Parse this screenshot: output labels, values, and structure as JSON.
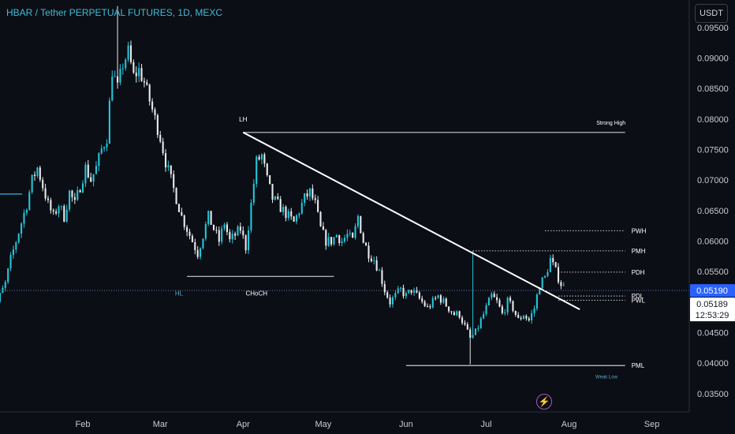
{
  "header": {
    "title": "HBAR / Tether PERPETUAL FUTURES, 1D, MEXC"
  },
  "toolbar": {
    "currency": "USDT",
    "alert_icon": "lightning-icon"
  },
  "price_tags": {
    "last_price": "0.05190",
    "mark_price": "0.05189",
    "countdown": "12:53:29"
  },
  "colors": {
    "background": "#0c0e15",
    "up": "#24c6d9",
    "down": "#e8eaed",
    "accent": "#2962ff",
    "text": "#c8cbd3"
  },
  "chart_data": {
    "type": "candlestick",
    "title": "HBAR / Tether PERPETUAL FUTURES, 1D, MEXC",
    "x_ticks": [
      "Feb",
      "Mar",
      "Apr",
      "May",
      "Jun",
      "Jul",
      "Aug",
      "Sep"
    ],
    "y_ticks": [
      "0.09500",
      "0.09000",
      "0.08500",
      "0.08000",
      "0.07500",
      "0.07000",
      "0.06500",
      "0.06000",
      "0.05500",
      "0.05000",
      "0.04500",
      "0.04000",
      "0.03500"
    ],
    "ylim": [
      0.032,
      0.0995
    ],
    "x_start": "2024-01-01",
    "x_end": "2024-09-15",
    "grid": false,
    "closes": [
      [
        -4,
        0.047
      ],
      [
        -2,
        0.049
      ],
      [
        0,
        0.051
      ],
      [
        2,
        0.053
      ],
      [
        4,
        0.057
      ],
      [
        6,
        0.06
      ],
      [
        8,
        0.063
      ],
      [
        10,
        0.066
      ],
      [
        12,
        0.07
      ],
      [
        14,
        0.072
      ],
      [
        16,
        0.069
      ],
      [
        18,
        0.066
      ],
      [
        20,
        0.064
      ],
      [
        22,
        0.066
      ],
      [
        24,
        0.064
      ],
      [
        26,
        0.068
      ],
      [
        28,
        0.066
      ],
      [
        30,
        0.069
      ],
      [
        32,
        0.072
      ],
      [
        34,
        0.07
      ],
      [
        36,
        0.072
      ],
      [
        38,
        0.075
      ],
      [
        40,
        0.077
      ],
      [
        42,
        0.088
      ],
      [
        44,
        0.085
      ],
      [
        46,
        0.089
      ],
      [
        48,
        0.091
      ],
      [
        50,
        0.087
      ],
      [
        52,
        0.088
      ],
      [
        54,
        0.086
      ],
      [
        56,
        0.083
      ],
      [
        58,
        0.08
      ],
      [
        60,
        0.077
      ],
      [
        62,
        0.073
      ],
      [
        64,
        0.07
      ],
      [
        66,
        0.067
      ],
      [
        68,
        0.064
      ],
      [
        70,
        0.062
      ],
      [
        72,
        0.06
      ],
      [
        74,
        0.058
      ],
      [
        76,
        0.061
      ],
      [
        78,
        0.064
      ],
      [
        80,
        0.062
      ],
      [
        82,
        0.06
      ],
      [
        84,
        0.063
      ],
      [
        86,
        0.06
      ],
      [
        88,
        0.061
      ],
      [
        90,
        0.062
      ],
      [
        92,
        0.059
      ],
      [
        94,
        0.066
      ],
      [
        96,
        0.073
      ],
      [
        98,
        0.074
      ],
      [
        100,
        0.07
      ],
      [
        102,
        0.067
      ],
      [
        104,
        0.066
      ],
      [
        106,
        0.065
      ],
      [
        108,
        0.064
      ],
      [
        110,
        0.063
      ],
      [
        112,
        0.065
      ],
      [
        114,
        0.067
      ],
      [
        116,
        0.068
      ],
      [
        118,
        0.066
      ],
      [
        120,
        0.062
      ],
      [
        122,
        0.06
      ],
      [
        124,
        0.06
      ],
      [
        126,
        0.061
      ],
      [
        128,
        0.06
      ],
      [
        130,
        0.061
      ],
      [
        132,
        0.06
      ],
      [
        134,
        0.064
      ],
      [
        136,
        0.06
      ],
      [
        138,
        0.058
      ],
      [
        140,
        0.057
      ],
      [
        142,
        0.055
      ],
      [
        144,
        0.052
      ],
      [
        146,
        0.05
      ],
      [
        148,
        0.051
      ],
      [
        150,
        0.052
      ],
      [
        152,
        0.051
      ],
      [
        154,
        0.052
      ],
      [
        156,
        0.051
      ],
      [
        158,
        0.05
      ],
      [
        160,
        0.049
      ],
      [
        162,
        0.05
      ],
      [
        164,
        0.051
      ],
      [
        166,
        0.05
      ],
      [
        168,
        0.049
      ],
      [
        170,
        0.048
      ],
      [
        172,
        0.048
      ],
      [
        174,
        0.046
      ],
      [
        176,
        0.044
      ],
      [
        178,
        0.045
      ],
      [
        180,
        0.047
      ],
      [
        182,
        0.049
      ],
      [
        184,
        0.051
      ],
      [
        186,
        0.05
      ],
      [
        188,
        0.048
      ],
      [
        190,
        0.05
      ],
      [
        192,
        0.049
      ],
      [
        194,
        0.047
      ],
      [
        196,
        0.048
      ],
      [
        198,
        0.047
      ],
      [
        200,
        0.049
      ],
      [
        202,
        0.053
      ],
      [
        204,
        0.054
      ],
      [
        206,
        0.057
      ],
      [
        208,
        0.055
      ],
      [
        210,
        0.053
      ],
      [
        212,
        0.0519
      ]
    ],
    "levels": [
      {
        "label": "Strong High",
        "x1": "2024-04-01",
        "x2": "2024-08-22",
        "y": 0.0778,
        "style": "solid"
      },
      {
        "label": "LH",
        "x": "2024-04-01",
        "y": 0.0778
      },
      {
        "label": "PWH",
        "x1": "2024-07-23",
        "x2": "2024-08-22",
        "y": 0.0617,
        "style": "dotted"
      },
      {
        "label": "PMH",
        "x1": "2024-06-26",
        "x2": "2024-08-22",
        "y": 0.0584,
        "style": "dotted"
      },
      {
        "label": "PDH",
        "x1": "2024-07-28",
        "x2": "2024-08-22",
        "y": 0.0549,
        "style": "dotted"
      },
      {
        "label": "PDL",
        "x1": "2024-07-28",
        "x2": "2024-08-22",
        "y": 0.051,
        "style": "dotted"
      },
      {
        "label": "PWL",
        "x1": "2024-07-28",
        "x2": "2024-08-22",
        "y": 0.0503,
        "style": "dotted"
      },
      {
        "label": "PML",
        "x1": "2024-06-01",
        "x2": "2024-08-22",
        "y": 0.0396,
        "style": "solid"
      },
      {
        "label": "Weak Low",
        "x": "2024-08-15",
        "y": 0.038
      },
      {
        "label": "CHoCH",
        "x1": "2024-03-11",
        "x2": "2024-05-05",
        "y": 0.0542,
        "style": "solid",
        "text_y": 0.0516
      },
      {
        "label": "HL",
        "x": "2024-03-08",
        "y": 0.0516
      }
    ],
    "trendline": {
      "x1": "2024-04-01",
      "y1": 0.0778,
      "x2": "2024-08-05",
      "y2": 0.0488
    },
    "current_price": 0.0519
  }
}
